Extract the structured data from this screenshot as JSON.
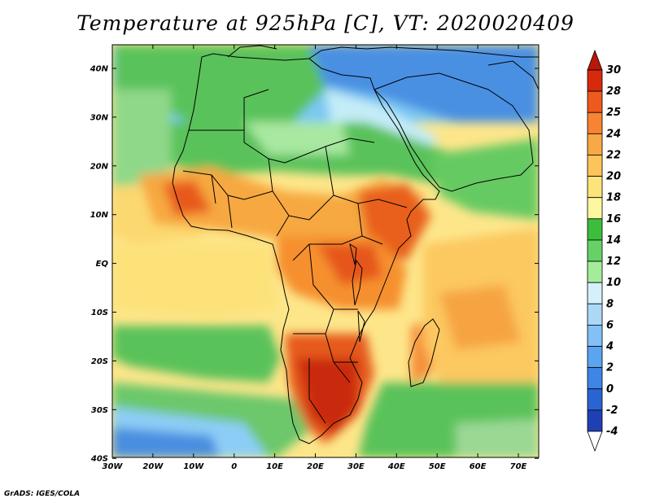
{
  "title": "Temperature at 925hPa [C], VT: 2020020409",
  "footer": "GrADS: IGES/COLA",
  "map": {
    "lon_range": [
      -30,
      75
    ],
    "lat_range": [
      -40,
      45
    ],
    "lat_ticks": [
      "40N",
      "30N",
      "20N",
      "10N",
      "EQ",
      "10S",
      "20S",
      "30S",
      "40S"
    ],
    "lon_ticks": [
      "30W",
      "20W",
      "10W",
      "0",
      "10E",
      "20E",
      "30E",
      "40E",
      "50E",
      "60E",
      "70E"
    ]
  },
  "colorbar": {
    "levels": [
      "-4",
      "-2",
      "0",
      "2",
      "4",
      "6",
      "8",
      "10",
      "12",
      "14",
      "16",
      "18",
      "20",
      "22",
      "24",
      "25",
      "28",
      "30"
    ],
    "colors": [
      "#1a1a8a",
      "#1f40b4",
      "#2a64d2",
      "#3e86e6",
      "#5aa4f0",
      "#82c0f6",
      "#acd8f8",
      "#d4f0fa",
      "#a4ec9a",
      "#66d266",
      "#3cbe3c",
      "#fdf7a0",
      "#fde47a",
      "#fcc45a",
      "#f9a846",
      "#f68432",
      "#ee5a1e",
      "#d62a0c",
      "#b81808"
    ]
  }
}
